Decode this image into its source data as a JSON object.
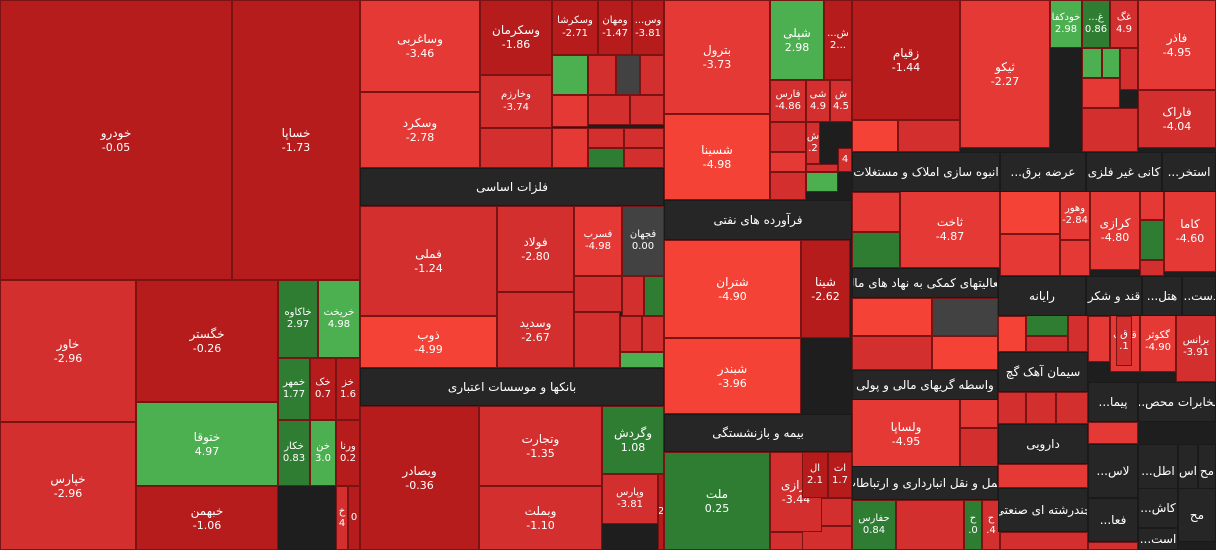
{
  "colors": {
    "deep_red": "#b71c1c",
    "red": "#d32f2f",
    "bright_red": "#e53935",
    "light_red": "#f44336",
    "green": "#4caf50",
    "dark_green": "#2e7d32",
    "gray": "#424242",
    "header": "#262626"
  },
  "sectors": [
    {
      "name": "فلزات اساسی"
    },
    {
      "name": "فرآورده های نفتی"
    },
    {
      "name": "بانکها و موسسات اعتباری"
    },
    {
      "name": "بیمه و بازنشستگی"
    },
    {
      "name": "انبوه سازی املاک و مستغلات"
    },
    {
      "name": "عرضه برق..."
    },
    {
      "name": "کانی غیر فلزی"
    },
    {
      "name": "استخر..."
    },
    {
      "name": "فعالیتهای کمکی به نهاد های مال"
    },
    {
      "name": "رایانه"
    },
    {
      "name": "قند و شکر"
    },
    {
      "name": "هتل..."
    },
    {
      "name": "دست..."
    },
    {
      "name": "سیمان آهک گچ"
    },
    {
      "name": "واسطه گریهای مالی و پولی"
    },
    {
      "name": "پیما..."
    },
    {
      "name": "مخابرات محص..."
    },
    {
      "name": "دارویی"
    },
    {
      "name": "حمل و نقل انبارداری و ارتباطات"
    },
    {
      "name": "لاس..."
    },
    {
      "name": "اطل..."
    },
    {
      "name": "اس"
    },
    {
      "name": "مح"
    },
    {
      "name": "چندرشته ای صنعتی"
    },
    {
      "name": "فعا..."
    },
    {
      "name": "کاش..."
    },
    {
      "name": "مح"
    },
    {
      "name": "است..."
    }
  ],
  "tiles": [
    {
      "symbol": "خودرو",
      "change": "-0.05"
    },
    {
      "symbol": "خساپا",
      "change": "-1.73"
    },
    {
      "symbol": "خاور",
      "change": "-2.96"
    },
    {
      "symbol": "خگستر",
      "change": "-0.26"
    },
    {
      "symbol": "خاکاوه",
      "change": "2.97"
    },
    {
      "symbol": "خریخت",
      "change": "4.98"
    },
    {
      "symbol": "خمهر",
      "change": "1.77"
    },
    {
      "symbol": "خک",
      "change": "0.7"
    },
    {
      "symbol": "خز",
      "change": "1.6"
    },
    {
      "symbol": "ختوقا",
      "change": "4.97"
    },
    {
      "symbol": "خکار",
      "change": "0.83"
    },
    {
      "symbol": "خن",
      "change": "3.0"
    },
    {
      "symbol": "ورنا",
      "change": "0.2"
    },
    {
      "symbol": "خپارس",
      "change": "-2.96"
    },
    {
      "symbol": "خبهمن",
      "change": "-1.06"
    },
    {
      "symbol": "خ",
      "change": "4"
    },
    {
      "symbol": "",
      "change": "0"
    },
    {
      "symbol": "وساغربی",
      "change": "-3.46"
    },
    {
      "symbol": "وسکرمان",
      "change": "-1.86"
    },
    {
      "symbol": "وسکرشا",
      "change": "-2.71"
    },
    {
      "symbol": "ومهان",
      "change": "-1.47"
    },
    {
      "symbol": "وس...",
      "change": "-3.81"
    },
    {
      "symbol": "وسکرد",
      "change": "-2.78"
    },
    {
      "symbol": "وخارزم",
      "change": "-3.74"
    },
    {
      "symbol": "فملی",
      "change": "-1.24"
    },
    {
      "symbol": "فولاد",
      "change": "-2.80"
    },
    {
      "symbol": "فسرب",
      "change": "-4.98"
    },
    {
      "symbol": "فجهان",
      "change": "0.00"
    },
    {
      "symbol": "ذوب",
      "change": "-4.99"
    },
    {
      "symbol": "وسدید",
      "change": "-2.67"
    },
    {
      "symbol": "وبصادر",
      "change": "-0.36"
    },
    {
      "symbol": "وتجارت",
      "change": "-1.35"
    },
    {
      "symbol": "وگردش",
      "change": "1.08"
    },
    {
      "symbol": "وپارس",
      "change": "-3.81"
    },
    {
      "symbol": "وبملت",
      "change": "-1.10"
    },
    {
      "symbol": "",
      "change": "2"
    },
    {
      "symbol": "بترول",
      "change": "-3.73"
    },
    {
      "symbol": "شپلی",
      "change": "2.98"
    },
    {
      "symbol": "ش...",
      "change": "2..."
    },
    {
      "symbol": "فارس",
      "change": "-4.86"
    },
    {
      "symbol": "شی",
      "change": "4.9"
    },
    {
      "symbol": "ش",
      "change": "4.5"
    },
    {
      "symbol": "ش",
      "change": ".2"
    },
    {
      "symbol": "",
      "change": "4"
    },
    {
      "symbol": "شسینا",
      "change": "-4.98"
    },
    {
      "symbol": "شتران",
      "change": "-4.90"
    },
    {
      "symbol": "شینا",
      "change": "-2.62"
    },
    {
      "symbol": "شبندر",
      "change": "-3.96"
    },
    {
      "symbol": "ملت",
      "change": "0.25"
    },
    {
      "symbol": "ورازی",
      "change": "-3.44"
    },
    {
      "symbol": "ال",
      "change": "2.1"
    },
    {
      "symbol": "ات",
      "change": "1.7"
    },
    {
      "symbol": "زقیام",
      "change": "-1.44"
    },
    {
      "symbol": "ثیکو",
      "change": "-2.27"
    },
    {
      "symbol": "خودکفا",
      "change": "2.98"
    },
    {
      "symbol": "غ...",
      "change": "0.86"
    },
    {
      "symbol": "غگ",
      "change": "4.9"
    },
    {
      "symbol": "فاذر",
      "change": "-4.95"
    },
    {
      "symbol": "فاراک",
      "change": "-4.04"
    },
    {
      "symbol": "ثاخت",
      "change": "-4.87"
    },
    {
      "symbol": "وهور",
      "change": "-2.84"
    },
    {
      "symbol": "کرازی",
      "change": "-4.80"
    },
    {
      "symbol": "کاما",
      "change": "-4.60"
    },
    {
      "symbol": "قثابت",
      "change": "4..."
    },
    {
      "symbol": "ق",
      "change": ".1"
    },
    {
      "symbol": "گکوثر",
      "change": "-4.90"
    },
    {
      "symbol": "برانس",
      "change": "-3.91"
    },
    {
      "symbol": "ولساپا",
      "change": "-4.95"
    },
    {
      "symbol": "حفارس",
      "change": "0.84"
    },
    {
      "symbol": "ح",
      "change": ".0"
    },
    {
      "symbol": "ح",
      "change": ".4"
    }
  ]
}
